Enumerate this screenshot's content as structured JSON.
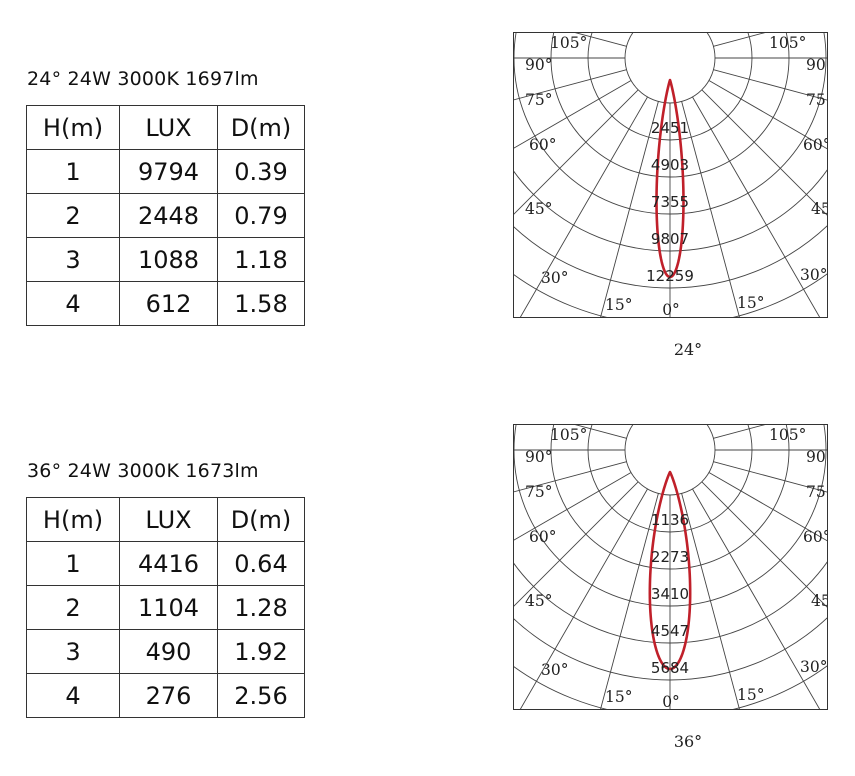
{
  "sections": [
    {
      "title": "24°  24W  3000K 1697lm",
      "table": {
        "headers": [
          "H(m)",
          "LUX",
          "D(m)"
        ],
        "rows": [
          [
            "1",
            "9794",
            "0.39"
          ],
          [
            "2",
            "2448",
            "0.79"
          ],
          [
            "3",
            "1088",
            "1.18"
          ],
          [
            "4",
            "612",
            "1.58"
          ]
        ]
      },
      "caption": "24°"
    },
    {
      "title": "36°  24W  3000K 1673lm",
      "table": {
        "headers": [
          "H(m)",
          "LUX",
          "D(m)"
        ],
        "rows": [
          [
            "1",
            "4416",
            "0.64"
          ],
          [
            "2",
            "1104",
            "1.28"
          ],
          [
            "3",
            "490",
            "1.92"
          ],
          [
            "4",
            "276",
            "2.56"
          ]
        ]
      },
      "caption": "36°"
    }
  ],
  "chart_data": [
    {
      "type": "polar",
      "beam_angle_deg": 24,
      "ring_values": [
        2451,
        4903,
        7355,
        9807,
        12259
      ],
      "angle_labels": [
        "105°",
        "90°",
        "75°",
        "60°",
        "45°",
        "30°",
        "15°",
        "0°"
      ],
      "curve_color": "#c0202a",
      "caption": "24°"
    },
    {
      "type": "polar",
      "beam_angle_deg": 36,
      "ring_values": [
        1136,
        2273,
        3410,
        4547,
        5684
      ],
      "angle_labels": [
        "105°",
        "90°",
        "75°",
        "60°",
        "45°",
        "30°",
        "15°",
        "0°"
      ],
      "curve_color": "#c0202a",
      "caption": "36°"
    }
  ]
}
